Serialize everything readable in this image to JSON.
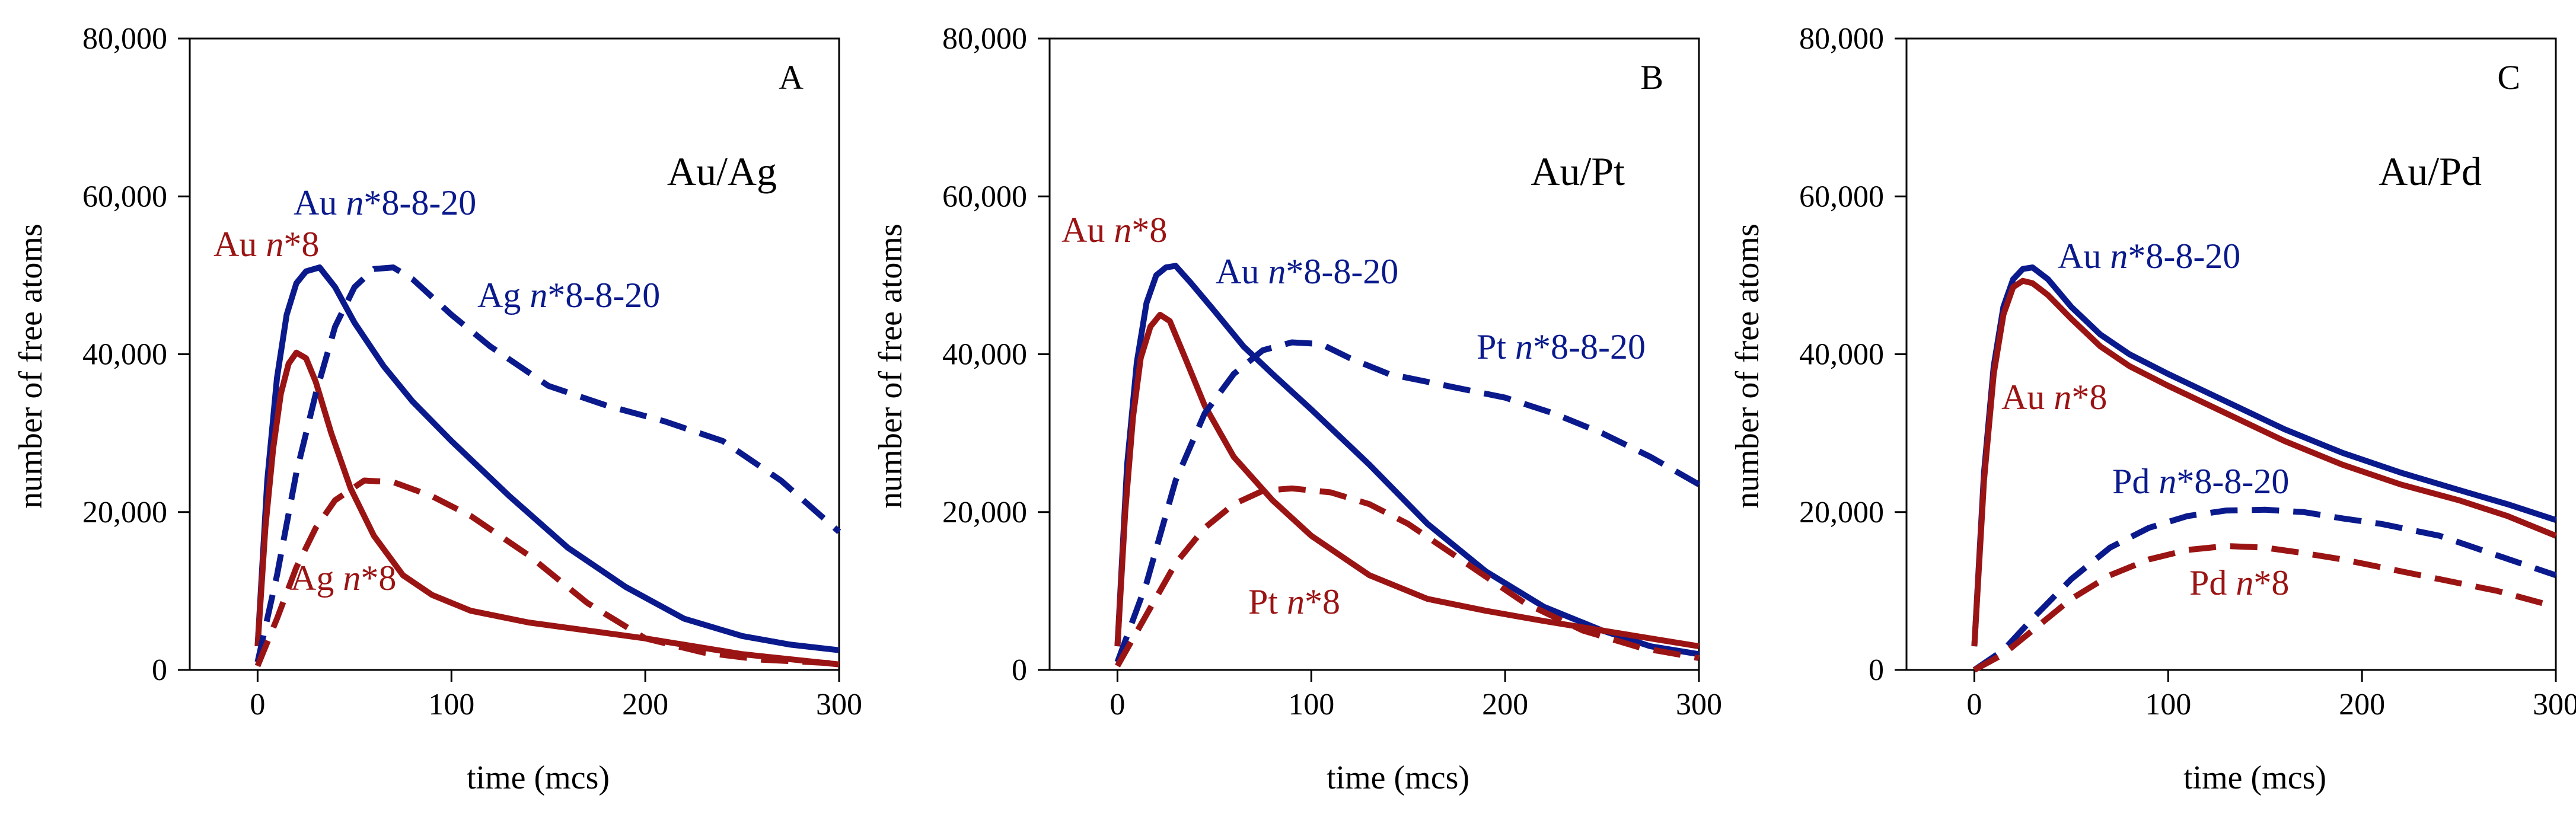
{
  "colors": {
    "blue": "#0a1a8c",
    "red": "#9b1414",
    "axis": "#000000"
  },
  "chart_data": [
    {
      "type": "line",
      "panel_letter": "A",
      "system_label": "Au/Ag",
      "xlabel": "time (mcs)",
      "ylabel": "number of free atoms",
      "xlim": [
        -35,
        300
      ],
      "ylim": [
        0,
        80000
      ],
      "x_ticks": [
        "0",
        "100",
        "200",
        "300"
      ],
      "y_ticks": [
        "0",
        "20,000",
        "40,000",
        "60,000",
        "80,000"
      ],
      "grid": false,
      "series": [
        {
          "name": "Au n*8-8-20",
          "color": "blue",
          "dash": false,
          "label_prefix": "Au",
          "label_italic": "n",
          "label_suffix": "*8-8-20",
          "points": [
            [
              0,
              3000
            ],
            [
              5,
              24000
            ],
            [
              10,
              37000
            ],
            [
              15,
              45000
            ],
            [
              20,
              49000
            ],
            [
              25,
              50500
            ],
            [
              32,
              51000
            ],
            [
              40,
              48500
            ],
            [
              50,
              44000
            ],
            [
              65,
              38500
            ],
            [
              80,
              34000
            ],
            [
              100,
              29000
            ],
            [
              130,
              22000
            ],
            [
              160,
              15500
            ],
            [
              190,
              10500
            ],
            [
              220,
              6500
            ],
            [
              250,
              4300
            ],
            [
              275,
              3200
            ],
            [
              300,
              2500
            ]
          ]
        },
        {
          "name": "Au n*8",
          "color": "red",
          "dash": false,
          "label_prefix": "Au",
          "label_italic": "n",
          "label_suffix": "*8",
          "points": [
            [
              0,
              3000
            ],
            [
              4,
              18000
            ],
            [
              8,
              28000
            ],
            [
              12,
              35000
            ],
            [
              16,
              38800
            ],
            [
              20,
              40200
            ],
            [
              25,
              39500
            ],
            [
              30,
              36500
            ],
            [
              38,
              30000
            ],
            [
              48,
              23000
            ],
            [
              60,
              17000
            ],
            [
              75,
              12000
            ],
            [
              90,
              9500
            ],
            [
              110,
              7500
            ],
            [
              140,
              6000
            ],
            [
              170,
              5000
            ],
            [
              200,
              4000
            ],
            [
              250,
              2000
            ],
            [
              300,
              700
            ]
          ]
        },
        {
          "name": "Ag n*8-8-20",
          "color": "blue",
          "dash": true,
          "label_prefix": "Ag",
          "label_italic": "n",
          "label_suffix": "*8-8-20",
          "points": [
            [
              0,
              1000
            ],
            [
              10,
              12000
            ],
            [
              20,
              25000
            ],
            [
              30,
              35000
            ],
            [
              40,
              43500
            ],
            [
              50,
              48500
            ],
            [
              60,
              50800
            ],
            [
              70,
              51000
            ],
            [
              80,
              49500
            ],
            [
              100,
              45000
            ],
            [
              120,
              41000
            ],
            [
              150,
              36000
            ],
            [
              180,
              33500
            ],
            [
              210,
              31500
            ],
            [
              240,
              29000
            ],
            [
              270,
              24000
            ],
            [
              300,
              17500
            ]
          ]
        },
        {
          "name": "Ag n*8",
          "color": "red",
          "dash": true,
          "label_prefix": "Ag",
          "label_italic": "n",
          "label_suffix": "*8",
          "points": [
            [
              0,
              500
            ],
            [
              10,
              6500
            ],
            [
              20,
              13000
            ],
            [
              30,
              18000
            ],
            [
              40,
              21500
            ],
            [
              55,
              24000
            ],
            [
              70,
              23800
            ],
            [
              90,
              22000
            ],
            [
              110,
              19500
            ],
            [
              140,
              14500
            ],
            [
              170,
              8500
            ],
            [
              200,
              4000
            ],
            [
              230,
              2200
            ],
            [
              260,
              1300
            ],
            [
              300,
              800
            ]
          ]
        }
      ]
    },
    {
      "type": "line",
      "panel_letter": "B",
      "system_label": "Au/Pt",
      "xlabel": "time (mcs)",
      "ylabel": "number of free atoms",
      "xlim": [
        -35,
        300
      ],
      "ylim": [
        0,
        80000
      ],
      "x_ticks": [
        "0",
        "100",
        "200",
        "300"
      ],
      "y_ticks": [
        "0",
        "20,000",
        "40,000",
        "60,000",
        "80,000"
      ],
      "grid": false,
      "series": [
        {
          "name": "Au n*8-8-20",
          "color": "blue",
          "dash": false,
          "label_prefix": "Au",
          "label_italic": "n",
          "label_suffix": "*8-8-20",
          "points": [
            [
              0,
              3000
            ],
            [
              5,
              26000
            ],
            [
              10,
              39000
            ],
            [
              15,
              46500
            ],
            [
              20,
              50000
            ],
            [
              25,
              51000
            ],
            [
              30,
              51200
            ],
            [
              38,
              49000
            ],
            [
              50,
              45500
            ],
            [
              65,
              41000
            ],
            [
              80,
              37500
            ],
            [
              100,
              33000
            ],
            [
              130,
              26000
            ],
            [
              160,
              18500
            ],
            [
              190,
              12500
            ],
            [
              220,
              8000
            ],
            [
              250,
              5000
            ],
            [
              275,
              3000
            ],
            [
              300,
              2000
            ]
          ]
        },
        {
          "name": "Au n*8",
          "color": "red",
          "dash": false,
          "label_prefix": "Au",
          "label_italic": "n",
          "label_suffix": "*8",
          "points": [
            [
              0,
              3000
            ],
            [
              4,
              20000
            ],
            [
              8,
              32000
            ],
            [
              12,
              39500
            ],
            [
              17,
              43500
            ],
            [
              22,
              45000
            ],
            [
              27,
              44200
            ],
            [
              35,
              39500
            ],
            [
              45,
              33500
            ],
            [
              60,
              27000
            ],
            [
              80,
              21500
            ],
            [
              100,
              17000
            ],
            [
              130,
              12000
            ],
            [
              160,
              9000
            ],
            [
              190,
              7500
            ],
            [
              220,
              6200
            ],
            [
              250,
              5000
            ],
            [
              275,
              4000
            ],
            [
              300,
              3000
            ]
          ]
        },
        {
          "name": "Pt n*8-8-20",
          "color": "blue",
          "dash": true,
          "label_prefix": "Pt",
          "label_italic": "n",
          "label_suffix": "*8-8-20",
          "points": [
            [
              0,
              1000
            ],
            [
              15,
              11000
            ],
            [
              30,
              24000
            ],
            [
              45,
              32500
            ],
            [
              60,
              37500
            ],
            [
              75,
              40500
            ],
            [
              90,
              41500
            ],
            [
              105,
              41300
            ],
            [
              120,
              39500
            ],
            [
              140,
              37500
            ],
            [
              170,
              36000
            ],
            [
              200,
              34500
            ],
            [
              225,
              32500
            ],
            [
              250,
              30000
            ],
            [
              275,
              27000
            ],
            [
              300,
              23500
            ]
          ]
        },
        {
          "name": "Pt n*8",
          "color": "red",
          "dash": true,
          "label_prefix": "Pt",
          "label_italic": "n",
          "label_suffix": "*8",
          "points": [
            [
              0,
              500
            ],
            [
              15,
              7000
            ],
            [
              30,
              13500
            ],
            [
              45,
              18000
            ],
            [
              60,
              21000
            ],
            [
              75,
              22700
            ],
            [
              90,
              23000
            ],
            [
              110,
              22500
            ],
            [
              130,
              21000
            ],
            [
              150,
              18500
            ],
            [
              180,
              13500
            ],
            [
              210,
              8500
            ],
            [
              240,
              5000
            ],
            [
              270,
              2800
            ],
            [
              300,
              1500
            ]
          ]
        }
      ]
    },
    {
      "type": "line",
      "panel_letter": "C",
      "system_label": "Au/Pd",
      "xlabel": "time (mcs)",
      "ylabel": "number of free atoms",
      "xlim": [
        -35,
        300
      ],
      "ylim": [
        0,
        80000
      ],
      "x_ticks": [
        "0",
        "100",
        "200",
        "300"
      ],
      "y_ticks": [
        "0",
        "20,000",
        "40,000",
        "60,000",
        "80,000"
      ],
      "grid": false,
      "series": [
        {
          "name": "Au n*8-8-20",
          "color": "blue",
          "dash": false,
          "label_prefix": "Au",
          "label_italic": "n",
          "label_suffix": "*8-8-20",
          "points": [
            [
              0,
              3000
            ],
            [
              5,
              25000
            ],
            [
              10,
              38500
            ],
            [
              15,
              46000
            ],
            [
              20,
              49500
            ],
            [
              25,
              50800
            ],
            [
              30,
              51000
            ],
            [
              38,
              49500
            ],
            [
              50,
              46000
            ],
            [
              65,
              42500
            ],
            [
              80,
              40000
            ],
            [
              100,
              37500
            ],
            [
              130,
              34000
            ],
            [
              160,
              30500
            ],
            [
              190,
              27500
            ],
            [
              220,
              25000
            ],
            [
              250,
              22800
            ],
            [
              275,
              21000
            ],
            [
              300,
              19000
            ]
          ]
        },
        {
          "name": "Au n*8",
          "color": "red",
          "dash": false,
          "label_prefix": "Au",
          "label_italic": "n",
          "label_suffix": "*8",
          "points": [
            [
              0,
              3000
            ],
            [
              5,
              24000
            ],
            [
              10,
              37500
            ],
            [
              15,
              45000
            ],
            [
              20,
              48500
            ],
            [
              25,
              49300
            ],
            [
              30,
              49000
            ],
            [
              38,
              47500
            ],
            [
              50,
              44500
            ],
            [
              65,
              41000
            ],
            [
              80,
              38500
            ],
            [
              100,
              36000
            ],
            [
              130,
              32500
            ],
            [
              160,
              29000
            ],
            [
              190,
              26000
            ],
            [
              220,
              23500
            ],
            [
              250,
              21500
            ],
            [
              275,
              19500
            ],
            [
              300,
              17000
            ]
          ]
        },
        {
          "name": "Pd n*8-8-20",
          "color": "blue",
          "dash": true,
          "label_prefix": "Pd",
          "label_italic": "n",
          "label_suffix": "*8-8-20",
          "points": [
            [
              0,
              0
            ],
            [
              15,
              2500
            ],
            [
              30,
              6500
            ],
            [
              50,
              11500
            ],
            [
              70,
              15500
            ],
            [
              90,
              18000
            ],
            [
              110,
              19500
            ],
            [
              130,
              20200
            ],
            [
              150,
              20300
            ],
            [
              170,
              20000
            ],
            [
              190,
              19200
            ],
            [
              210,
              18500
            ],
            [
              240,
              17000
            ],
            [
              270,
              14500
            ],
            [
              300,
              12000
            ]
          ]
        },
        {
          "name": "Pd n*8",
          "color": "red",
          "dash": true,
          "label_prefix": "Pd",
          "label_italic": "n",
          "label_suffix": "*8",
          "points": [
            [
              0,
              0
            ],
            [
              15,
              2000
            ],
            [
              30,
              5000
            ],
            [
              50,
              9000
            ],
            [
              70,
              12000
            ],
            [
              90,
              14000
            ],
            [
              110,
              15200
            ],
            [
              130,
              15700
            ],
            [
              150,
              15500
            ],
            [
              170,
              14800
            ],
            [
              190,
              14000
            ],
            [
              210,
              13000
            ],
            [
              240,
              11500
            ],
            [
              270,
              10000
            ],
            [
              300,
              8000
            ]
          ]
        }
      ]
    }
  ]
}
